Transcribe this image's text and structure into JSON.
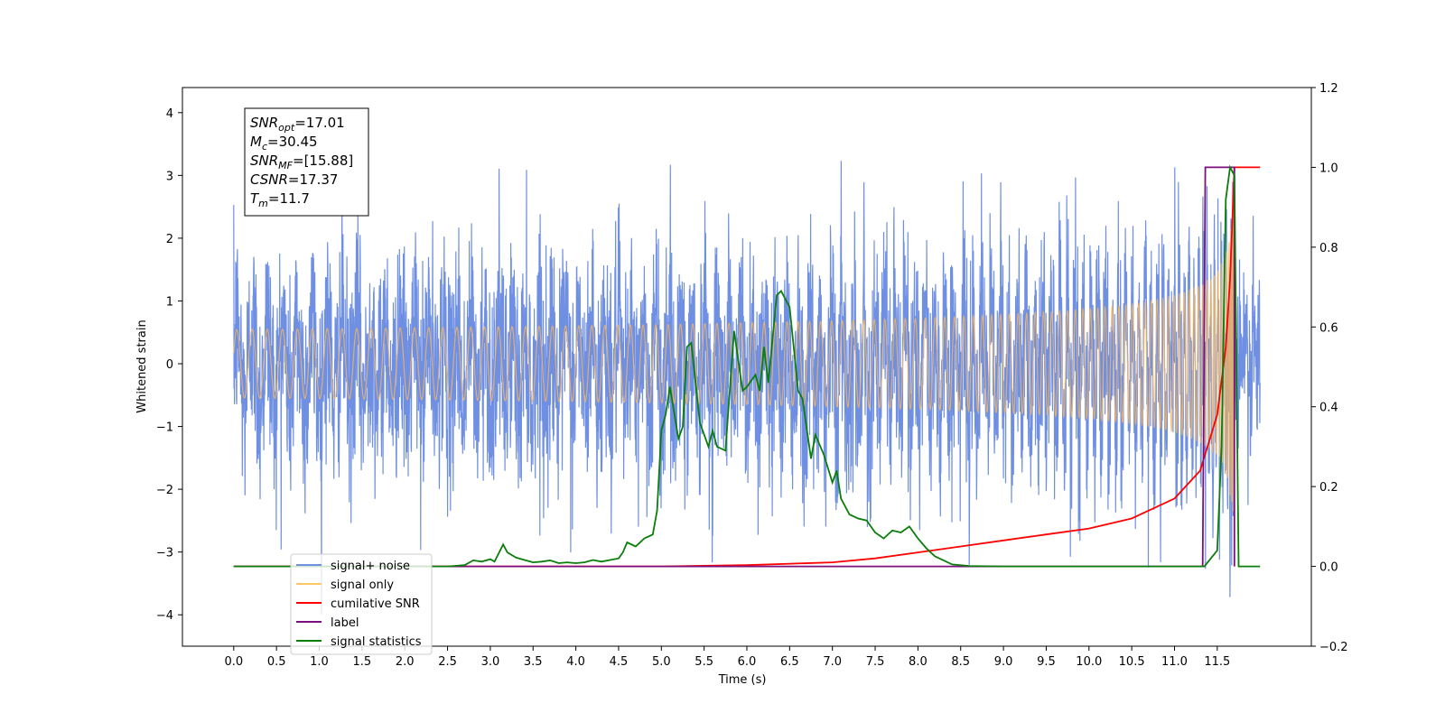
{
  "chart_data": {
    "type": "line",
    "xlabel": "Time (s)",
    "ylabel": "Whitened strain",
    "ylabel_right": "",
    "xlim": [
      -0.6,
      12.6
    ],
    "ylim": [
      -4.5,
      4.4
    ],
    "ylim_right": [
      -0.2,
      1.2
    ],
    "x_ticks": [
      "0.0",
      "0.5",
      "1.0",
      "1.5",
      "2.0",
      "2.5",
      "3.0",
      "3.5",
      "4.0",
      "4.5",
      "5.0",
      "5.5",
      "6.0",
      "6.5",
      "7.0",
      "7.5",
      "8.0",
      "8.5",
      "9.0",
      "9.5",
      "10.0",
      "10.5",
      "11.0",
      "11.5"
    ],
    "y_ticks": [
      "4",
      "3",
      "2",
      "1",
      "0",
      "−1",
      "−2",
      "−3",
      "−4"
    ],
    "y_ticks_right": [
      "1.2",
      "1.0",
      "0.8",
      "0.6",
      "0.4",
      "0.2",
      "0.0",
      "−0.2"
    ],
    "grid": false,
    "legend_placement": "lower-left",
    "annotation": {
      "lines": [
        {
          "sym": "SNR",
          "sub": "opt",
          "text": "=17.01"
        },
        {
          "sym": "M",
          "sub": "c",
          "text": "=30.45"
        },
        {
          "sym": "SNR",
          "sub": "MF",
          "text": "=[15.88]"
        },
        {
          "sym": "CSNR",
          "sub": "",
          "text": "=17.37"
        },
        {
          "sym": "T",
          "sub": "m",
          "text": "=11.7"
        }
      ]
    },
    "series": [
      {
        "name": "signal+ noise",
        "color": "#6f8fe2",
        "axis": "left",
        "noise_std": 0.85,
        "noise_range": [
          -3.8,
          3.8
        ],
        "x_range": [
          0.0,
          12.0
        ]
      },
      {
        "name": "signal only",
        "color": "#f7b55e",
        "axis": "left",
        "chirp_peak_time": 11.7,
        "chirp_peak_amplitude": 4.0,
        "x_range": [
          0.0,
          11.7
        ]
      },
      {
        "name": "cumilative SNR",
        "color": "#ff0000",
        "axis": "right",
        "points": [
          [
            0,
            0
          ],
          [
            5.0,
            0.0
          ],
          [
            6.0,
            0.003
          ],
          [
            7.0,
            0.01
          ],
          [
            7.5,
            0.02
          ],
          [
            8.0,
            0.035
          ],
          [
            8.5,
            0.05
          ],
          [
            9.0,
            0.065
          ],
          [
            9.5,
            0.08
          ],
          [
            10.0,
            0.095
          ],
          [
            10.5,
            0.12
          ],
          [
            11.0,
            0.17
          ],
          [
            11.3,
            0.24
          ],
          [
            11.5,
            0.38
          ],
          [
            11.6,
            0.55
          ],
          [
            11.65,
            0.72
          ],
          [
            11.7,
            1.0
          ],
          [
            12.0,
            1.0
          ]
        ]
      },
      {
        "name": "label",
        "color": "#7b0f7b",
        "axis": "right",
        "points": [
          [
            0,
            0
          ],
          [
            11.33,
            0
          ],
          [
            11.36,
            1.0
          ],
          [
            11.7,
            1.0
          ],
          [
            11.7,
            0
          ]
        ]
      },
      {
        "name": "signal statistics",
        "color": "#0a7d0a",
        "axis": "right",
        "points": [
          [
            0,
            0
          ],
          [
            2.5,
            0
          ],
          [
            2.7,
            0.003
          ],
          [
            2.8,
            0.015
          ],
          [
            2.9,
            0.012
          ],
          [
            3.0,
            0.018
          ],
          [
            3.05,
            0.012
          ],
          [
            3.15,
            0.055
          ],
          [
            3.2,
            0.035
          ],
          [
            3.3,
            0.022
          ],
          [
            3.4,
            0.016
          ],
          [
            3.5,
            0.01
          ],
          [
            3.6,
            0.012
          ],
          [
            3.7,
            0.015
          ],
          [
            3.8,
            0.008
          ],
          [
            3.9,
            0.01
          ],
          [
            4.0,
            0.008
          ],
          [
            4.1,
            0.01
          ],
          [
            4.2,
            0.016
          ],
          [
            4.3,
            0.012
          ],
          [
            4.4,
            0.016
          ],
          [
            4.5,
            0.02
          ],
          [
            4.55,
            0.035
          ],
          [
            4.6,
            0.06
          ],
          [
            4.7,
            0.05
          ],
          [
            4.8,
            0.07
          ],
          [
            4.9,
            0.08
          ],
          [
            4.95,
            0.14
          ],
          [
            5.0,
            0.34
          ],
          [
            5.05,
            0.38
          ],
          [
            5.1,
            0.45
          ],
          [
            5.2,
            0.32
          ],
          [
            5.25,
            0.35
          ],
          [
            5.3,
            0.55
          ],
          [
            5.35,
            0.56
          ],
          [
            5.4,
            0.46
          ],
          [
            5.45,
            0.36
          ],
          [
            5.5,
            0.33
          ],
          [
            5.55,
            0.3
          ],
          [
            5.6,
            0.34
          ],
          [
            5.65,
            0.3
          ],
          [
            5.75,
            0.29
          ],
          [
            5.85,
            0.59
          ],
          [
            5.95,
            0.44
          ],
          [
            6.0,
            0.45
          ],
          [
            6.1,
            0.48
          ],
          [
            6.15,
            0.44
          ],
          [
            6.2,
            0.55
          ],
          [
            6.25,
            0.46
          ],
          [
            6.35,
            0.68
          ],
          [
            6.4,
            0.69
          ],
          [
            6.5,
            0.65
          ],
          [
            6.6,
            0.44
          ],
          [
            6.65,
            0.42
          ],
          [
            6.75,
            0.27
          ],
          [
            6.8,
            0.33
          ],
          [
            6.9,
            0.28
          ],
          [
            7.0,
            0.21
          ],
          [
            7.05,
            0.24
          ],
          [
            7.1,
            0.17
          ],
          [
            7.2,
            0.13
          ],
          [
            7.3,
            0.12
          ],
          [
            7.4,
            0.115
          ],
          [
            7.5,
            0.085
          ],
          [
            7.6,
            0.07
          ],
          [
            7.7,
            0.09
          ],
          [
            7.8,
            0.085
          ],
          [
            7.9,
            0.1
          ],
          [
            8.0,
            0.07
          ],
          [
            8.1,
            0.045
          ],
          [
            8.2,
            0.025
          ],
          [
            8.4,
            0.005
          ],
          [
            8.6,
            0.001
          ],
          [
            9.0,
            0
          ],
          [
            11.35,
            0
          ],
          [
            11.5,
            0.04
          ],
          [
            11.55,
            0.3
          ],
          [
            11.6,
            0.92
          ],
          [
            11.65,
            1.0
          ],
          [
            11.7,
            0.98
          ],
          [
            11.75,
            0.0
          ],
          [
            12.0,
            0.0
          ]
        ]
      }
    ]
  },
  "legend": [
    {
      "label": "signal+ noise",
      "color": "#6f8fe2"
    },
    {
      "label": "signal only",
      "color": "#ffc766"
    },
    {
      "label": "cumilative SNR",
      "color": "#ff0000"
    },
    {
      "label": "label",
      "color": "#7b0f7b"
    },
    {
      "label": "signal statistics",
      "color": "#0a7d0a"
    }
  ]
}
